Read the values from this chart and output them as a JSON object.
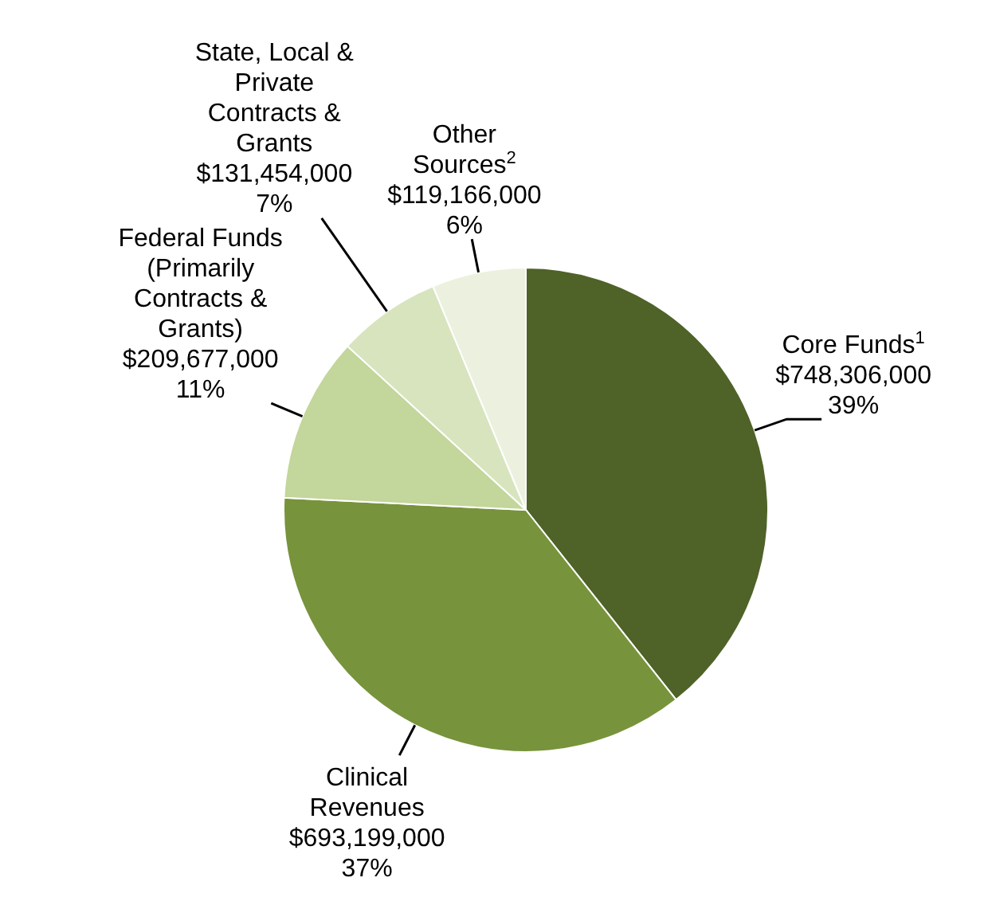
{
  "chart_data": {
    "type": "pie",
    "categories": [
      "Core Funds$^{1}$",
      "Clinical Revenues",
      "Federal Funds (Primarily Contracts & Grants)",
      "State, Local & Private Contracts & Grants",
      "Other Sources$^{2}$"
    ],
    "values": [
      748306000,
      693199000,
      209677000,
      131454000,
      119166000
    ],
    "value_labels": [
      "$748,306,000\n39%",
      "$693,199,000\n37%",
      "$209,677,000\n11%",
      "$131,454,000\n7%",
      "$119,166,000\n6%"
    ],
    "colors": [
      "#4f6228",
      "#77933c",
      "#c3d69b",
      "#d7e4bd",
      "#ebf1de"
    ]
  }
}
